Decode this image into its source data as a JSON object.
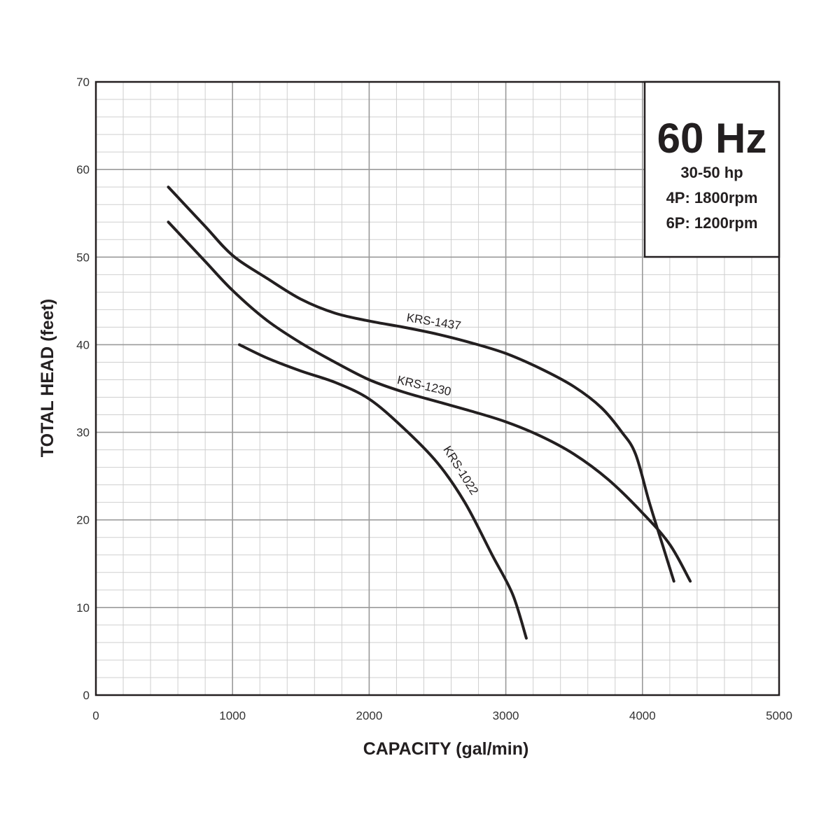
{
  "chart_data": {
    "type": "line",
    "xlabel": "CAPACITY (gal/min)",
    "ylabel": "TOTAL HEAD (feet)",
    "xlim": [
      0,
      5000
    ],
    "ylim": [
      0,
      70
    ],
    "x_ticks": [
      "0",
      "1000",
      "2000",
      "3000",
      "4000",
      "5000"
    ],
    "y_ticks": [
      "0",
      "10",
      "20",
      "30",
      "40",
      "50",
      "60",
      "70"
    ],
    "grid": true,
    "info_box": {
      "title": "60 Hz",
      "lines": [
        "30-50 hp",
        "4P: 1800rpm",
        "6P: 1200rpm"
      ],
      "placement": "top-right"
    },
    "series": [
      {
        "name": "KRS-1437",
        "points": [
          [
            530,
            58
          ],
          [
            800,
            53.5
          ],
          [
            1000,
            50.2
          ],
          [
            1250,
            47.6
          ],
          [
            1500,
            45.2
          ],
          [
            1750,
            43.6
          ],
          [
            2000,
            42.7
          ],
          [
            2250,
            42
          ],
          [
            2500,
            41.2
          ],
          [
            2750,
            40.2
          ],
          [
            3000,
            39
          ],
          [
            3250,
            37.3
          ],
          [
            3500,
            35.2
          ],
          [
            3700,
            32.8
          ],
          [
            3850,
            30
          ],
          [
            3950,
            27.5
          ],
          [
            4050,
            22
          ],
          [
            4150,
            17
          ],
          [
            4230,
            13
          ]
        ]
      },
      {
        "name": "KRS-1230",
        "points": [
          [
            530,
            54
          ],
          [
            800,
            49.5
          ],
          [
            1000,
            46.2
          ],
          [
            1250,
            42.8
          ],
          [
            1500,
            40.2
          ],
          [
            1750,
            38
          ],
          [
            2000,
            36
          ],
          [
            2250,
            34.6
          ],
          [
            2500,
            33.5
          ],
          [
            2750,
            32.4
          ],
          [
            3000,
            31.2
          ],
          [
            3250,
            29.6
          ],
          [
            3500,
            27.5
          ],
          [
            3750,
            24.6
          ],
          [
            4000,
            20.8
          ],
          [
            4200,
            17.2
          ],
          [
            4350,
            13
          ]
        ]
      },
      {
        "name": "KRS-1022",
        "points": [
          [
            1050,
            40
          ],
          [
            1250,
            38.5
          ],
          [
            1500,
            37
          ],
          [
            1750,
            35.7
          ],
          [
            2000,
            33.8
          ],
          [
            2250,
            30.5
          ],
          [
            2500,
            26.5
          ],
          [
            2700,
            22
          ],
          [
            2900,
            16
          ],
          [
            3050,
            11.5
          ],
          [
            3150,
            6.5
          ]
        ]
      }
    ]
  }
}
